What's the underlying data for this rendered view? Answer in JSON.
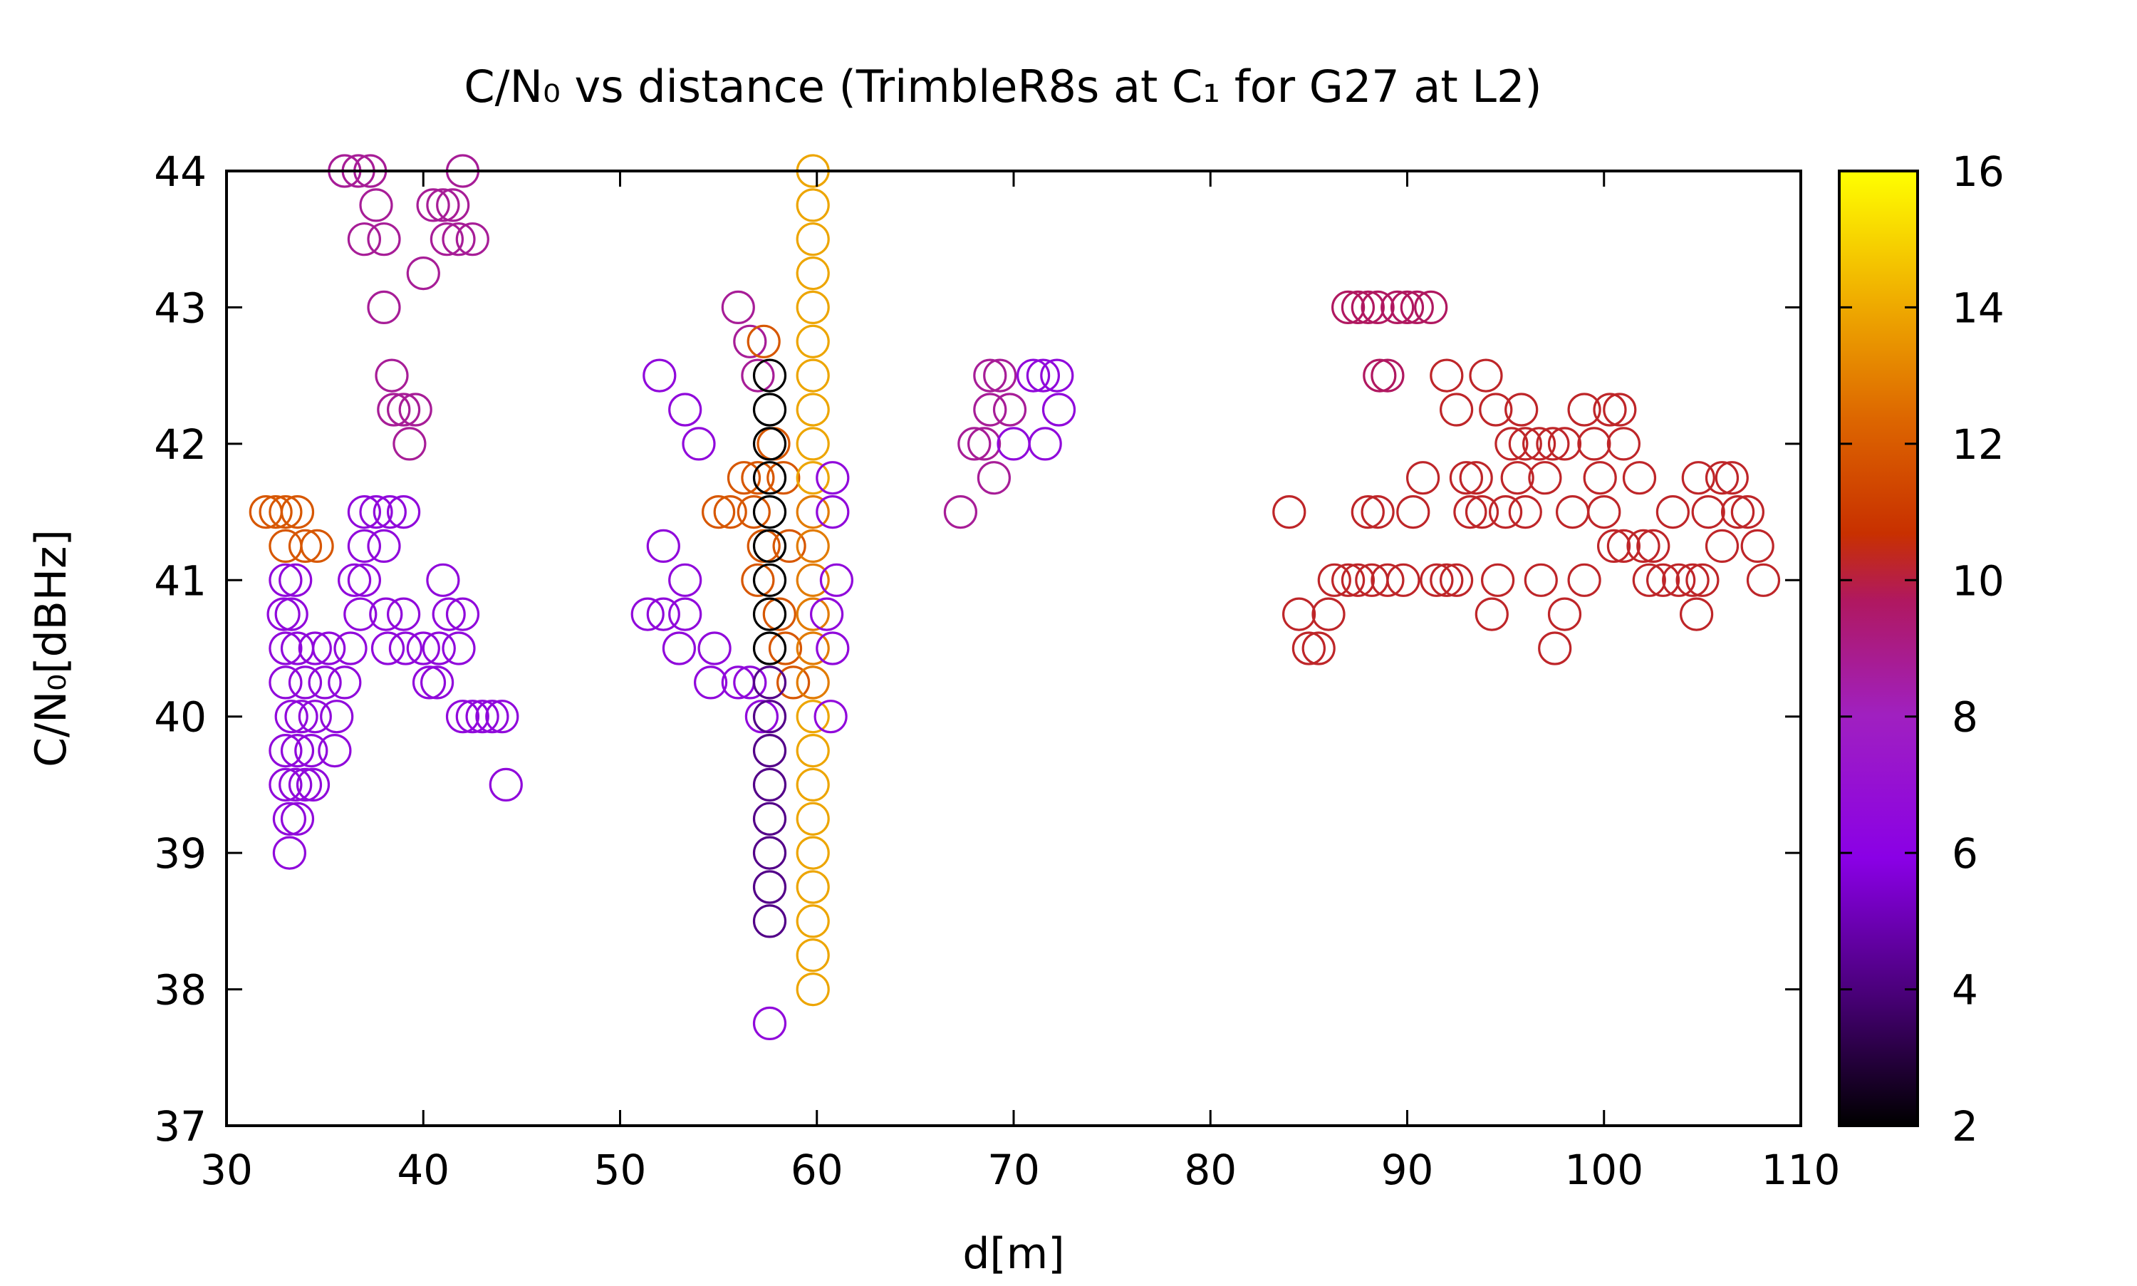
{
  "chart_data": {
    "type": "scatter",
    "title": "C/N₀ vs distance (TrimbleR8s at C₁ for G27 at L2)",
    "xlabel": "d[m]",
    "ylabel": "C/N₀[dBHz]",
    "xlim": [
      30,
      110
    ],
    "ylim": [
      37,
      44
    ],
    "xticks": [
      30,
      40,
      50,
      60,
      70,
      80,
      90,
      100,
      110
    ],
    "yticks": [
      37,
      38,
      39,
      40,
      41,
      42,
      43,
      44
    ],
    "grid": false,
    "marker": "open-circle",
    "colorbar": {
      "range": [
        2,
        16
      ],
      "ticks": [
        2,
        4,
        6,
        8,
        10,
        12,
        14,
        16
      ],
      "palette": [
        "#000000",
        "#4a007a",
        "#8a00e6",
        "#a020c0",
        "#b01860",
        "#c83000",
        "#dd6600",
        "#f0b000",
        "#ffff00"
      ]
    },
    "points": [
      [
        32.0,
        41.5,
        12
      ],
      [
        32.5,
        41.5,
        12
      ],
      [
        33.0,
        41.5,
        12
      ],
      [
        33.6,
        41.5,
        12
      ],
      [
        33.0,
        41.25,
        12
      ],
      [
        34.0,
        41.25,
        12
      ],
      [
        34.6,
        41.25,
        12
      ],
      [
        33.0,
        41.0,
        6
      ],
      [
        33.5,
        41.0,
        6
      ],
      [
        32.9,
        40.75,
        6
      ],
      [
        33.3,
        40.75,
        6
      ],
      [
        33.0,
        40.5,
        6
      ],
      [
        33.6,
        40.5,
        6
      ],
      [
        34.5,
        40.5,
        6
      ],
      [
        35.2,
        40.5,
        6
      ],
      [
        33.0,
        40.25,
        6
      ],
      [
        34.0,
        40.25,
        6
      ],
      [
        35.0,
        40.25,
        6
      ],
      [
        36.0,
        40.25,
        6
      ],
      [
        33.3,
        40.0,
        6
      ],
      [
        33.8,
        40.0,
        6
      ],
      [
        34.5,
        40.0,
        6
      ],
      [
        35.6,
        40.0,
        6
      ],
      [
        33.0,
        39.75,
        6
      ],
      [
        33.6,
        39.75,
        6
      ],
      [
        34.3,
        39.75,
        6
      ],
      [
        35.5,
        39.75,
        6
      ],
      [
        33.0,
        39.5,
        6
      ],
      [
        33.5,
        39.5,
        6
      ],
      [
        34.0,
        39.5,
        6
      ],
      [
        34.4,
        39.5,
        6
      ],
      [
        33.2,
        39.25,
        6
      ],
      [
        33.6,
        39.25,
        6
      ],
      [
        33.2,
        39.0,
        6
      ],
      [
        36.0,
        44.0,
        8
      ],
      [
        36.7,
        44.0,
        8
      ],
      [
        37.3,
        44.0,
        8
      ],
      [
        37.0,
        43.5,
        8
      ],
      [
        37.6,
        43.75,
        8
      ],
      [
        38.0,
        43.5,
        8
      ],
      [
        38.0,
        43.0,
        8
      ],
      [
        38.4,
        42.5,
        8
      ],
      [
        38.5,
        42.25,
        8
      ],
      [
        39.0,
        42.25,
        8
      ],
      [
        39.6,
        42.25,
        8
      ],
      [
        39.3,
        42.0,
        8
      ],
      [
        40.0,
        43.25,
        8
      ],
      [
        40.5,
        43.75,
        8
      ],
      [
        41.0,
        43.75,
        8
      ],
      [
        41.5,
        43.75,
        8
      ],
      [
        41.2,
        43.5,
        8
      ],
      [
        41.8,
        43.5,
        8
      ],
      [
        42.5,
        43.5,
        8
      ],
      [
        42.0,
        44.0,
        8
      ],
      [
        37.0,
        41.5,
        6
      ],
      [
        37.6,
        41.5,
        6
      ],
      [
        38.3,
        41.5,
        6
      ],
      [
        39.0,
        41.5,
        6
      ],
      [
        37.0,
        41.25,
        6
      ],
      [
        38.0,
        41.25,
        6
      ],
      [
        36.5,
        41.0,
        6
      ],
      [
        37.0,
        41.0,
        6
      ],
      [
        36.8,
        40.75,
        6
      ],
      [
        38.1,
        40.75,
        6
      ],
      [
        39.0,
        40.75,
        6
      ],
      [
        36.3,
        40.5,
        6
      ],
      [
        38.2,
        40.5,
        6
      ],
      [
        39.1,
        40.5,
        6
      ],
      [
        40.0,
        40.5,
        6
      ],
      [
        40.8,
        40.5,
        6
      ],
      [
        41.8,
        40.5,
        6
      ],
      [
        40.3,
        40.25,
        6
      ],
      [
        40.7,
        40.25,
        6
      ],
      [
        41.0,
        41.0,
        6
      ],
      [
        41.3,
        40.75,
        6
      ],
      [
        42.0,
        40.75,
        6
      ],
      [
        42.0,
        40.0,
        6
      ],
      [
        42.5,
        40.0,
        6
      ],
      [
        43.0,
        40.0,
        6
      ],
      [
        43.5,
        40.0,
        6
      ],
      [
        44.0,
        40.0,
        6
      ],
      [
        44.2,
        39.5,
        6
      ],
      [
        52.0,
        42.5,
        6
      ],
      [
        53.3,
        42.25,
        6
      ],
      [
        54.0,
        42.0,
        6
      ],
      [
        52.2,
        41.25,
        6
      ],
      [
        53.3,
        41.0,
        6
      ],
      [
        51.4,
        40.75,
        6
      ],
      [
        52.2,
        40.75,
        6
      ],
      [
        53.3,
        40.75,
        6
      ],
      [
        53.0,
        40.5,
        6
      ],
      [
        54.8,
        40.5,
        6
      ],
      [
        54.6,
        40.25,
        6
      ],
      [
        56.0,
        40.25,
        6
      ],
      [
        56.6,
        40.25,
        6
      ],
      [
        57.2,
        40.0,
        6
      ],
      [
        56.0,
        43.0,
        8
      ],
      [
        56.6,
        42.75,
        8
      ],
      [
        57.3,
        42.75,
        12
      ],
      [
        57.0,
        42.5,
        8
      ],
      [
        55.0,
        41.5,
        12
      ],
      [
        55.6,
        41.5,
        12
      ],
      [
        56.3,
        41.75,
        12
      ],
      [
        57.0,
        41.75,
        12
      ],
      [
        56.8,
        41.5,
        12
      ],
      [
        57.3,
        41.25,
        12
      ],
      [
        57.8,
        42.0,
        12
      ],
      [
        58.3,
        41.75,
        12
      ],
      [
        58.6,
        41.25,
        12
      ],
      [
        57.0,
        41.0,
        12
      ],
      [
        58.1,
        40.75,
        12
      ],
      [
        58.4,
        40.5,
        12
      ],
      [
        58.8,
        40.25,
        12
      ],
      [
        57.6,
        42.5,
        2
      ],
      [
        57.6,
        42.25,
        2
      ],
      [
        57.6,
        42.0,
        2
      ],
      [
        57.6,
        41.75,
        2
      ],
      [
        57.6,
        41.5,
        2
      ],
      [
        57.6,
        41.25,
        2
      ],
      [
        57.6,
        41.0,
        2
      ],
      [
        57.6,
        40.75,
        2
      ],
      [
        57.6,
        40.5,
        2
      ],
      [
        57.6,
        40.25,
        4
      ],
      [
        57.6,
        40.0,
        4
      ],
      [
        57.6,
        39.75,
        4
      ],
      [
        57.6,
        39.5,
        4
      ],
      [
        57.6,
        39.25,
        4
      ],
      [
        57.6,
        39.0,
        4
      ],
      [
        57.6,
        38.75,
        4
      ],
      [
        57.6,
        38.5,
        4
      ],
      [
        57.6,
        37.75,
        6
      ],
      [
        59.8,
        44.0,
        14
      ],
      [
        59.8,
        43.75,
        14
      ],
      [
        59.8,
        43.5,
        14
      ],
      [
        59.8,
        43.25,
        14
      ],
      [
        59.8,
        43.0,
        14
      ],
      [
        59.8,
        42.75,
        14
      ],
      [
        59.8,
        42.5,
        14
      ],
      [
        59.8,
        42.25,
        14
      ],
      [
        59.8,
        42.0,
        14
      ],
      [
        59.8,
        41.75,
        14
      ],
      [
        59.8,
        41.5,
        13
      ],
      [
        59.8,
        41.25,
        13
      ],
      [
        59.8,
        41.0,
        13
      ],
      [
        59.8,
        40.75,
        13
      ],
      [
        59.8,
        40.5,
        13
      ],
      [
        59.8,
        40.25,
        13
      ],
      [
        59.8,
        40.0,
        14
      ],
      [
        59.8,
        39.75,
        14
      ],
      [
        59.8,
        39.5,
        14
      ],
      [
        59.8,
        39.25,
        14
      ],
      [
        59.8,
        39.0,
        14
      ],
      [
        59.8,
        38.75,
        14
      ],
      [
        59.8,
        38.5,
        14
      ],
      [
        59.8,
        38.25,
        14
      ],
      [
        59.8,
        38.0,
        14
      ],
      [
        60.8,
        41.75,
        6
      ],
      [
        60.8,
        41.5,
        6
      ],
      [
        61.0,
        41.0,
        6
      ],
      [
        60.5,
        40.75,
        6
      ],
      [
        60.8,
        40.5,
        6
      ],
      [
        60.7,
        40.0,
        6
      ],
      [
        67.3,
        41.5,
        8
      ],
      [
        68.0,
        42.0,
        8
      ],
      [
        68.5,
        42.0,
        8
      ],
      [
        68.8,
        42.5,
        8
      ],
      [
        69.3,
        42.5,
        8
      ],
      [
        68.8,
        42.25,
        8
      ],
      [
        69.0,
        41.75,
        8
      ],
      [
        69.8,
        42.25,
        8
      ],
      [
        70.0,
        42.0,
        6
      ],
      [
        71.0,
        42.5,
        6
      ],
      [
        71.5,
        42.5,
        6
      ],
      [
        72.2,
        42.5,
        6
      ],
      [
        72.3,
        42.25,
        6
      ],
      [
        71.6,
        42.0,
        6
      ],
      [
        84.0,
        41.5,
        10
      ],
      [
        84.5,
        40.75,
        10
      ],
      [
        85.0,
        40.5,
        10
      ],
      [
        85.5,
        40.5,
        10
      ],
      [
        86.0,
        40.75,
        10
      ],
      [
        86.3,
        41.0,
        10
      ],
      [
        87.0,
        41.0,
        10
      ],
      [
        87.5,
        41.0,
        10
      ],
      [
        88.2,
        41.0,
        10
      ],
      [
        89.0,
        41.0,
        10
      ],
      [
        89.8,
        41.0,
        10
      ],
      [
        87.0,
        43.0,
        9
      ],
      [
        87.5,
        43.0,
        9
      ],
      [
        88.0,
        43.0,
        9
      ],
      [
        88.5,
        43.0,
        9
      ],
      [
        89.5,
        43.0,
        9
      ],
      [
        90.0,
        43.0,
        9
      ],
      [
        90.5,
        43.0,
        9
      ],
      [
        91.2,
        43.0,
        9
      ],
      [
        88.6,
        42.5,
        9
      ],
      [
        89.0,
        42.5,
        9
      ],
      [
        88.0,
        41.5,
        10
      ],
      [
        88.5,
        41.5,
        10
      ],
      [
        90.3,
        41.5,
        10
      ],
      [
        90.8,
        41.75,
        10
      ],
      [
        91.5,
        41.0,
        10
      ],
      [
        92.0,
        41.0,
        10
      ],
      [
        92.5,
        41.0,
        10
      ],
      [
        92.0,
        42.5,
        10
      ],
      [
        92.5,
        42.25,
        10
      ],
      [
        93.0,
        41.75,
        10
      ],
      [
        93.5,
        41.75,
        10
      ],
      [
        93.2,
        41.5,
        10
      ],
      [
        93.8,
        41.5,
        10
      ],
      [
        94.0,
        42.5,
        10
      ],
      [
        94.5,
        42.25,
        10
      ],
      [
        94.3,
        40.75,
        10
      ],
      [
        94.6,
        41.0,
        10
      ],
      [
        95.0,
        41.5,
        10
      ],
      [
        95.6,
        41.75,
        10
      ],
      [
        95.8,
        42.25,
        10
      ],
      [
        95.3,
        42.0,
        10
      ],
      [
        96.0,
        42.0,
        10
      ],
      [
        96.7,
        42.0,
        10
      ],
      [
        97.4,
        42.0,
        10
      ],
      [
        98.0,
        42.0,
        10
      ],
      [
        96.0,
        41.5,
        10
      ],
      [
        96.8,
        41.0,
        10
      ],
      [
        97.0,
        41.75,
        10
      ],
      [
        97.5,
        40.5,
        10
      ],
      [
        98.0,
        40.75,
        10
      ],
      [
        98.4,
        41.5,
        10
      ],
      [
        99.0,
        41.0,
        10
      ],
      [
        99.0,
        42.25,
        10
      ],
      [
        99.5,
        42.0,
        10
      ],
      [
        99.8,
        41.75,
        10
      ],
      [
        100.0,
        41.5,
        10
      ],
      [
        100.3,
        42.25,
        10
      ],
      [
        100.8,
        42.25,
        10
      ],
      [
        100.5,
        41.25,
        10
      ],
      [
        101.0,
        42.0,
        10
      ],
      [
        101.8,
        41.75,
        10
      ],
      [
        101.0,
        41.25,
        10
      ],
      [
        102.0,
        41.25,
        10
      ],
      [
        102.5,
        41.25,
        10
      ],
      [
        102.3,
        41.0,
        10
      ],
      [
        103.0,
        41.0,
        10
      ],
      [
        103.5,
        41.5,
        10
      ],
      [
        103.8,
        41.0,
        10
      ],
      [
        104.5,
        41.0,
        10
      ],
      [
        105.0,
        41.0,
        10
      ],
      [
        104.8,
        41.75,
        10
      ],
      [
        104.7,
        40.75,
        10
      ],
      [
        105.3,
        41.5,
        10
      ],
      [
        106.0,
        41.75,
        10
      ],
      [
        106.5,
        41.75,
        10
      ],
      [
        106.0,
        41.25,
        10
      ],
      [
        106.8,
        41.5,
        10
      ],
      [
        107.3,
        41.5,
        10
      ],
      [
        107.8,
        41.25,
        10
      ],
      [
        108.1,
        41.0,
        10
      ]
    ]
  }
}
